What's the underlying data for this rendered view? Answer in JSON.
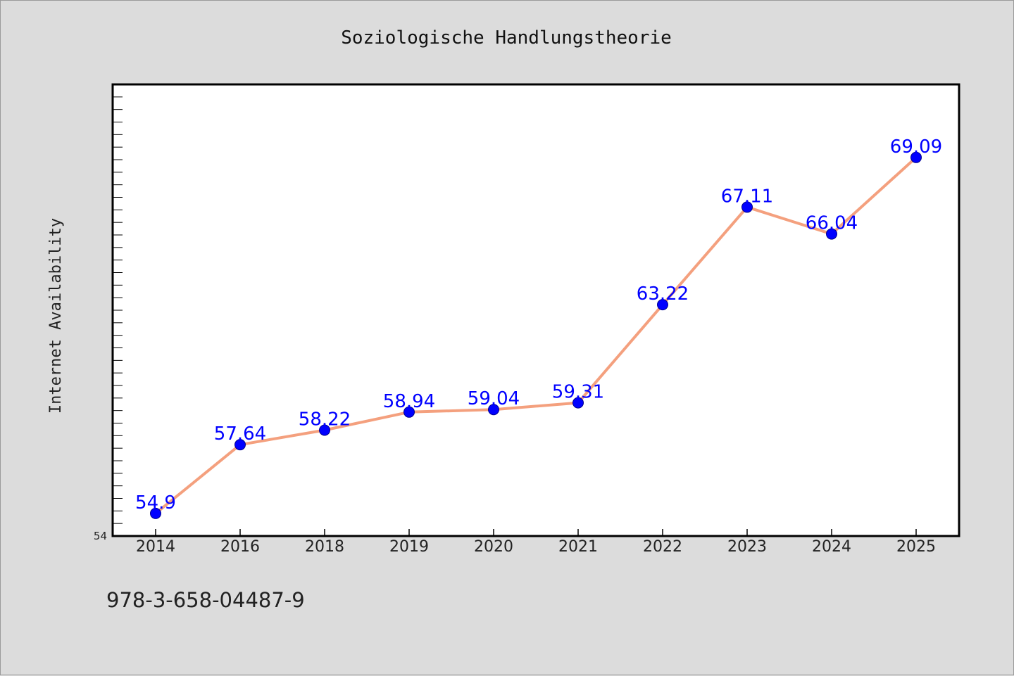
{
  "chart_data": {
    "type": "line",
    "title": "Soziologische Handlungstheorie",
    "ylabel": "Internet Availability",
    "xlabel": "",
    "categories": [
      "2014",
      "2016",
      "2018",
      "2019",
      "2020",
      "2021",
      "2022",
      "2023",
      "2024",
      "2025"
    ],
    "series": [
      {
        "values": [
          54.9,
          57.64,
          58.22,
          58.94,
          59.04,
          59.31,
          63.22,
          67.11,
          66.04,
          69.09
        ],
        "labels": [
          "54.9",
          "57.64",
          "58.22",
          "58.94",
          "59.04",
          "59.31",
          "63.22",
          "67.11",
          "66.04",
          "69.09"
        ]
      }
    ],
    "ylim": [
      54,
      72
    ],
    "y_tick_label": "54",
    "grid": false,
    "legend": "none",
    "colors": {
      "line": "#f4a07e",
      "marker": "#0000ff",
      "label": "#0000ff",
      "background": "#dcdcdc",
      "plot": "#ffffff"
    }
  },
  "footer": {
    "code": "978-3-658-04487-9"
  }
}
